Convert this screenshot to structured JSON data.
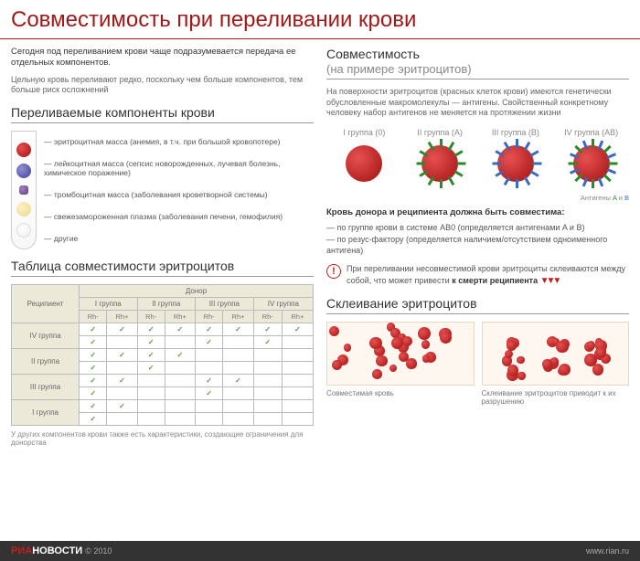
{
  "title": "Совместимость при переливании крови",
  "intro1": "Сегодня под переливанием крови чаще подразумевается передача ее отдельных компонентов.",
  "intro2": "Цельную кровь переливают редко, поскольку чем больше компонентов, тем больше риск осложнений",
  "sect_components": "Переливаемые компоненты крови",
  "components": [
    "эритроцитная масса (анемия, в т.ч. при большой кровопотере)",
    "лейкоцитная масса (сепсис новорожденных, лучевая болезнь, химическое поражение)",
    "тромбоцитная масса (заболевания кроветворной системы)",
    "свежезамороженная плазма (заболевания печени, гемофилия)",
    "другие"
  ],
  "sect_table": "Таблица совместимости эритроцитов",
  "tbl": {
    "donor": "Донор",
    "recipient": "Реципиент",
    "groups": [
      "I группа",
      "II группа",
      "III группа",
      "IV группа"
    ],
    "rh": [
      "Rh-",
      "Rh+"
    ],
    "rows": [
      "IV группа",
      "II группа",
      "III группа",
      "I группа"
    ]
  },
  "tbl_foot": "У других компонентов крови также есть характеристики, создающие ограничения для донорства",
  "sect_compat": "Совместимость",
  "sect_compat_sub": "(на примере эритроцитов)",
  "rdesc": "На поверхности эритроцитов (красных клеток крови) имеются генетически обусловленные макромолекулы — антигены. Свойственный конкретному человеку набор антигенов не меняется на протяжении жизни",
  "glabels": [
    {
      "g": "I группа",
      "n": "(0)"
    },
    {
      "g": "II группа",
      "n": "(A)"
    },
    {
      "g": "III группа",
      "n": "(B)"
    },
    {
      "g": "IV группа",
      "n": "(AB)"
    }
  ],
  "ag_legend_pre": "Антигены ",
  "ag_a": "A",
  "ag_and": " и ",
  "ag_b": "B",
  "donor_line": "Кровь донора и реципиента должна быть совместима:",
  "bullets": [
    "по группе крови в системе AB0 (определяется антигенами A и B)",
    "по резус-фактору (определяется наличием/отсутствием одноименного антигена)"
  ],
  "warn_pre": "При переливании несовместимой крови эритроциты склеиваются между собой, что может привести ",
  "warn_bold": "к смерти реципиента",
  "sect_agg": "Склеивание эритроцитов",
  "agg_caps": [
    "Совместимая кровь",
    "Склеивание эритроцитов приводит к их разрушению"
  ],
  "footer_logo1": "РИА",
  "footer_logo2": "НОВОСТИ",
  "footer_year": "© 2010",
  "footer_url": "www.rian.ru"
}
